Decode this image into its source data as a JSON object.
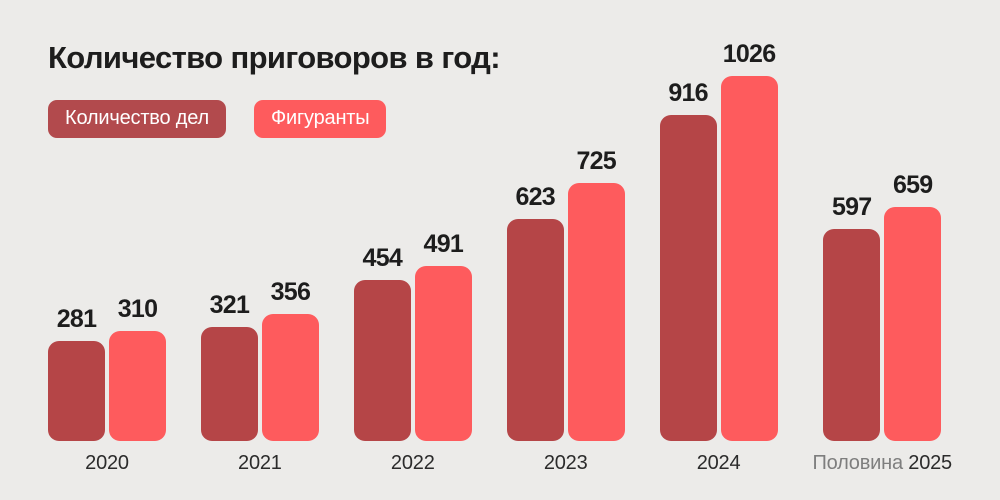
{
  "title": "Количество приговоров в год:",
  "legend": [
    {
      "label": "Количество дел",
      "color": "#b24a4d"
    },
    {
      "label": "Фигуранты",
      "color": "#fe5b5d"
    }
  ],
  "colors": {
    "background": "#ecebe9",
    "title_text": "#1d1d1d",
    "value_label": "#1d1d1d",
    "axis_label": "#2b2b2b",
    "axis_label_muted": "#7e7e7e",
    "bar_dark": "#b54547",
    "bar_light": "#fe5b5d"
  },
  "chart_data": {
    "type": "bar",
    "title": "Количество приговоров в год:",
    "categories": [
      "2020",
      "2021",
      "2022",
      "2023",
      "2024",
      "Половина 2025"
    ],
    "categories_styled": [
      {
        "text": "2020"
      },
      {
        "text": "2021"
      },
      {
        "text": "2022"
      },
      {
        "text": "2023"
      },
      {
        "text": "2024"
      },
      {
        "muted_prefix": "Половина",
        "text": "2025"
      }
    ],
    "series": [
      {
        "name": "Количество дел",
        "color": "#b54547",
        "values": [
          281,
          321,
          454,
          623,
          916,
          597
        ]
      },
      {
        "name": "Фигуранты",
        "color": "#fe5b5d",
        "values": [
          310,
          356,
          491,
          725,
          1026,
          659
        ]
      }
    ],
    "xlabel": "",
    "ylabel": "",
    "ylim": [
      0,
      1026
    ],
    "grid": false,
    "legend_position": "top-left",
    "value_labels": true
  }
}
